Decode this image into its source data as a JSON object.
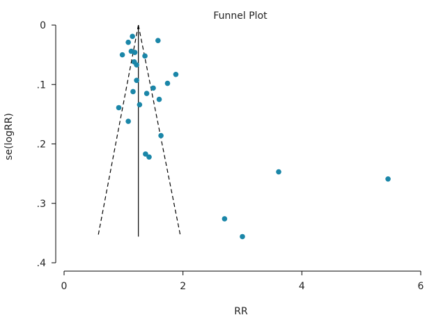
{
  "chart_data": {
    "type": "scatter",
    "title": "Funnel Plot",
    "xlabel": "RR",
    "ylabel": "se(logRR)",
    "xlim": [
      0,
      6
    ],
    "ylim": [
      0,
      0.4
    ],
    "y_reversed": true,
    "x_ticks": [
      0,
      2,
      4,
      6
    ],
    "x_tick_labels": [
      "0",
      "2",
      "4",
      "6"
    ],
    "y_ticks": [
      0,
      0.1,
      0.2,
      0.3,
      0.4
    ],
    "y_tick_labels": [
      "0",
      ".1",
      ".2",
      ".3",
      ".4"
    ],
    "grid": false,
    "marker_color": "#1a86a8",
    "points": [
      {
        "x": 1.15,
        "y": 0.019
      },
      {
        "x": 1.58,
        "y": 0.026
      },
      {
        "x": 1.08,
        "y": 0.029
      },
      {
        "x": 1.13,
        "y": 0.044
      },
      {
        "x": 1.19,
        "y": 0.046
      },
      {
        "x": 0.98,
        "y": 0.05
      },
      {
        "x": 1.36,
        "y": 0.052
      },
      {
        "x": 1.18,
        "y": 0.062
      },
      {
        "x": 1.22,
        "y": 0.067
      },
      {
        "x": 1.88,
        "y": 0.083
      },
      {
        "x": 1.22,
        "y": 0.093
      },
      {
        "x": 1.74,
        "y": 0.098
      },
      {
        "x": 1.5,
        "y": 0.106
      },
      {
        "x": 1.16,
        "y": 0.112
      },
      {
        "x": 1.39,
        "y": 0.115
      },
      {
        "x": 1.6,
        "y": 0.125
      },
      {
        "x": 1.27,
        "y": 0.134
      },
      {
        "x": 0.92,
        "y": 0.139
      },
      {
        "x": 1.08,
        "y": 0.162
      },
      {
        "x": 1.63,
        "y": 0.186
      },
      {
        "x": 1.37,
        "y": 0.217
      },
      {
        "x": 1.43,
        "y": 0.222
      },
      {
        "x": 3.61,
        "y": 0.247
      },
      {
        "x": 5.45,
        "y": 0.259
      },
      {
        "x": 2.7,
        "y": 0.326
      },
      {
        "x": 3.0,
        "y": 0.356
      }
    ],
    "pooled_rr": 1.25,
    "funnel_lines": {
      "apex": {
        "x": 1.25,
        "y": 0
      },
      "left_base": {
        "x": 0.57,
        "y": 0.356
      },
      "right_base": {
        "x": 1.96,
        "y": 0.356
      },
      "vertical_to": {
        "x": 1.25,
        "y": 0.356
      }
    }
  }
}
